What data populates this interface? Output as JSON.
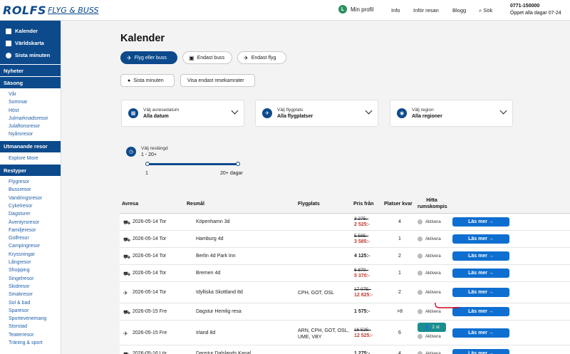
{
  "header": {
    "logo_main": "ROLFS",
    "logo_sub": "FLYG & BUSS",
    "profile_initial": "L",
    "profile_label": "Min profil",
    "nav": [
      "Info",
      "Inför resan",
      "Blogg",
      "Sök"
    ],
    "phone": "0771-150000",
    "hours": "Öppet alla dagar 07-24"
  },
  "sidebar": {
    "top_items": [
      "Kalender",
      "Världskarta",
      "Sista minuten"
    ],
    "news": "Nyheter",
    "season_head": "Säsong",
    "season_items": [
      "Vår",
      "Sommar",
      "Höst",
      "Julmarknadsresor",
      "Julaftonsresor",
      "Nyårsresor"
    ],
    "outgoing_head": "Utmanande resor",
    "outgoing_items": [
      "Explore More"
    ],
    "types_head": "Restyper",
    "types_items": [
      "Flygresor",
      "Bussresor",
      "Vandringsresor",
      "Cykelresor",
      "Dagsturer",
      "Äventyrsresor",
      "Familjeresor",
      "Golfresor",
      "Campingresor",
      "Kryssningar",
      "Långresor",
      "Shopping",
      "Singelresor",
      "Skidresor",
      "Smakresor",
      "Sol & bad",
      "Sparesor",
      "Sportevenemang",
      "Storstad",
      "Teaterresor",
      "Träning & sport"
    ]
  },
  "main": {
    "title": "Kalender",
    "pills": [
      "Flyg eller buss",
      "Endast buss",
      "Endast flyg"
    ],
    "pills2": [
      "Sista minuten",
      "Visa endast resekamrater"
    ],
    "filters": [
      {
        "label": "Välj avresedatum",
        "value": "Alla datum",
        "icon": "calendar-icon"
      },
      {
        "label": "Välj flygplats",
        "value": "Alla flygplatser",
        "icon": "plane-icon"
      },
      {
        "label": "Välj region",
        "value": "Alla regioner",
        "icon": "globe-icon"
      }
    ],
    "length": {
      "label": "Välj reslängd",
      "value": "1 - 20+",
      "min": "1",
      "max": "20+ dagar"
    }
  },
  "table": {
    "headers": {
      "date": "Avresa",
      "dest": "Resmål",
      "airport": "Flygplats",
      "price": "Pris från",
      "seats": "Platser kvar",
      "buddy": "Hitta rumskompis"
    },
    "activate_label": "Aktivera",
    "button_label": "Läs mer →",
    "rows": [
      {
        "type": "bus",
        "date": "2026-05-14 Tor",
        "dest": "Köpenhamn 3d",
        "airport": "",
        "old": "3 275:-",
        "price": "2 525:-",
        "seats": "4"
      },
      {
        "type": "bus",
        "date": "2026-05-14 Tor",
        "dest": "Hamburg 4d",
        "airport": "",
        "old": "5 585:-",
        "price": "3 585:-",
        "seats": "1"
      },
      {
        "type": "bus",
        "date": "2026-05-14 Tor",
        "dest": "Berlin 4d Park Inn",
        "airport": "",
        "old": "",
        "price": "4 125:-",
        "seats": "2"
      },
      {
        "type": "bus",
        "date": "2026-05-14 Tor",
        "dest": "Bremen 4d",
        "airport": "",
        "old": "6 870:-",
        "price": "5 370:-",
        "seats": "1"
      },
      {
        "type": "plane",
        "date": "2026-05-14 Tor",
        "dest": "Idylliska Skottland 8d",
        "airport": "CPH, GOT, OSL",
        "old": "17 075:-",
        "price": "12 825:-",
        "seats": "2"
      },
      {
        "type": "bus",
        "date": "2026-05-15 Fre",
        "dest": "Dagstur Hemlig resa",
        "airport": "",
        "old": "",
        "price": "1 575:-",
        "seats": ">8"
      },
      {
        "type": "plane",
        "date": "2026-05-15 Fre",
        "dest": "Irland 8d",
        "airport": "ARN, CPH, GOT, OSL, UME, VBY",
        "old": "16 525:-",
        "price": "12 525:-",
        "seats": "6",
        "buddy": "2 st"
      },
      {
        "type": "bus",
        "date": "2026-05-16 Lör",
        "dest": "Dagstur Dalslands Kanal",
        "airport": "",
        "old": "",
        "price": "1 275:-",
        "seats": "4"
      }
    ]
  }
}
